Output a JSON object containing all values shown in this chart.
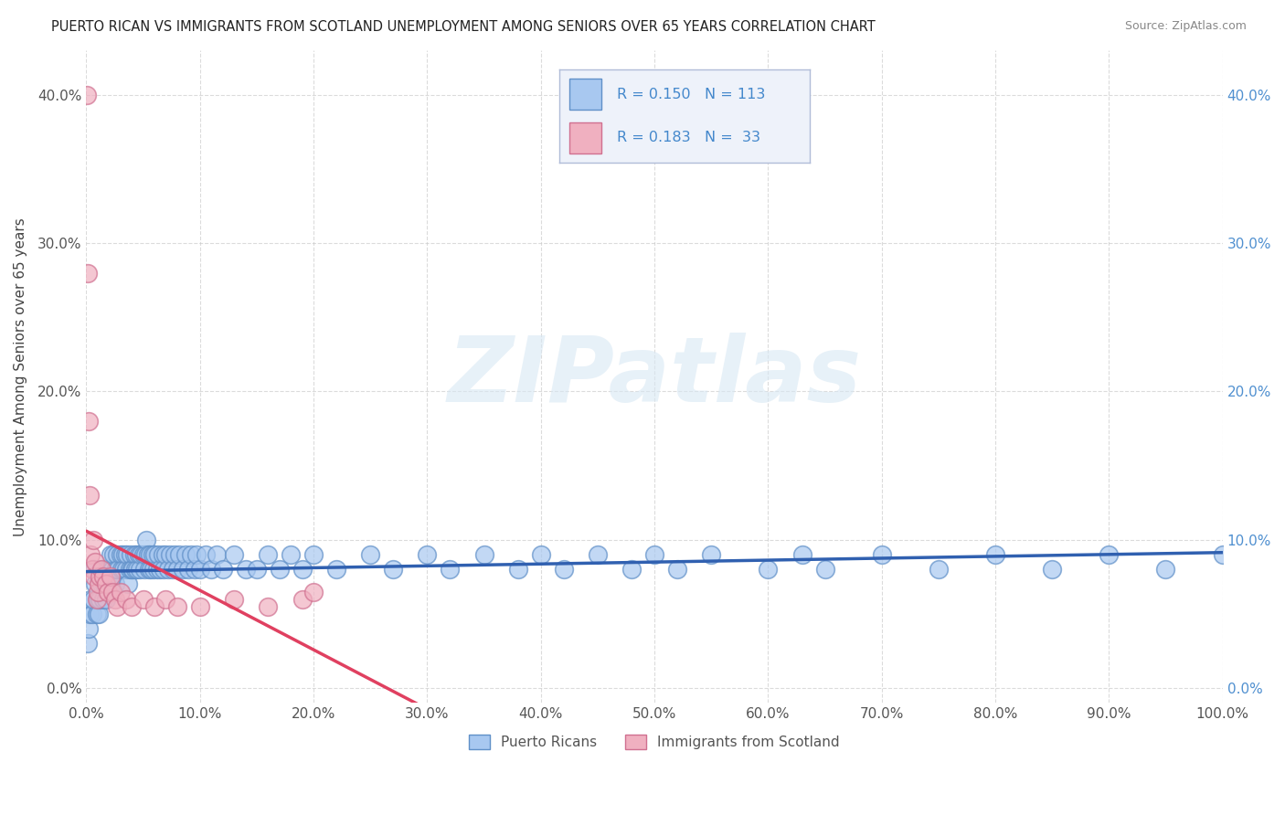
{
  "title": "PUERTO RICAN VS IMMIGRANTS FROM SCOTLAND UNEMPLOYMENT AMONG SENIORS OVER 65 YEARS CORRELATION CHART",
  "source": "Source: ZipAtlas.com",
  "ylabel": "Unemployment Among Seniors over 65 years",
  "series": [
    {
      "name": "Puerto Ricans",
      "color": "#a8c8f0",
      "edge_color": "#6090c8",
      "R": 0.15,
      "N": 113,
      "trend_color": "#3060b0",
      "x": [
        0.001,
        0.002,
        0.003,
        0.004,
        0.005,
        0.006,
        0.007,
        0.008,
        0.009,
        0.01,
        0.011,
        0.012,
        0.013,
        0.014,
        0.015,
        0.016,
        0.017,
        0.018,
        0.019,
        0.02,
        0.021,
        0.022,
        0.023,
        0.024,
        0.025,
        0.026,
        0.027,
        0.028,
        0.03,
        0.031,
        0.032,
        0.033,
        0.034,
        0.035,
        0.036,
        0.037,
        0.038,
        0.039,
        0.04,
        0.041,
        0.042,
        0.043,
        0.044,
        0.045,
        0.046,
        0.047,
        0.048,
        0.05,
        0.051,
        0.052,
        0.053,
        0.054,
        0.055,
        0.056,
        0.057,
        0.058,
        0.059,
        0.06,
        0.062,
        0.063,
        0.065,
        0.067,
        0.068,
        0.07,
        0.072,
        0.074,
        0.076,
        0.078,
        0.08,
        0.082,
        0.085,
        0.087,
        0.09,
        0.092,
        0.095,
        0.097,
        0.1,
        0.105,
        0.11,
        0.115,
        0.12,
        0.13,
        0.14,
        0.15,
        0.16,
        0.17,
        0.18,
        0.19,
        0.2,
        0.22,
        0.25,
        0.27,
        0.3,
        0.32,
        0.35,
        0.38,
        0.4,
        0.42,
        0.45,
        0.48,
        0.5,
        0.52,
        0.55,
        0.6,
        0.63,
        0.65,
        0.7,
        0.75,
        0.8,
        0.85,
        0.9,
        0.95,
        1.0
      ],
      "y": [
        0.03,
        0.04,
        0.05,
        0.06,
        0.05,
        0.06,
        0.08,
        0.07,
        0.05,
        0.06,
        0.05,
        0.06,
        0.07,
        0.08,
        0.06,
        0.07,
        0.06,
        0.08,
        0.07,
        0.08,
        0.09,
        0.07,
        0.08,
        0.09,
        0.07,
        0.08,
        0.09,
        0.08,
        0.09,
        0.08,
        0.09,
        0.08,
        0.09,
        0.08,
        0.09,
        0.07,
        0.08,
        0.09,
        0.08,
        0.08,
        0.09,
        0.08,
        0.09,
        0.08,
        0.09,
        0.08,
        0.09,
        0.09,
        0.08,
        0.09,
        0.1,
        0.09,
        0.08,
        0.09,
        0.08,
        0.09,
        0.08,
        0.09,
        0.08,
        0.09,
        0.08,
        0.09,
        0.08,
        0.09,
        0.08,
        0.09,
        0.08,
        0.09,
        0.08,
        0.09,
        0.08,
        0.09,
        0.08,
        0.09,
        0.08,
        0.09,
        0.08,
        0.09,
        0.08,
        0.09,
        0.08,
        0.09,
        0.08,
        0.08,
        0.09,
        0.08,
        0.09,
        0.08,
        0.09,
        0.08,
        0.09,
        0.08,
        0.09,
        0.08,
        0.09,
        0.08,
        0.09,
        0.08,
        0.09,
        0.08,
        0.09,
        0.08,
        0.09,
        0.08,
        0.09,
        0.08,
        0.09,
        0.08,
        0.09,
        0.08,
        0.09,
        0.08,
        0.09
      ]
    },
    {
      "name": "Immigrants from Scotland",
      "color": "#f0b0c0",
      "edge_color": "#d07090",
      "R": 0.183,
      "N": 33,
      "trend_color": "#e04060",
      "x": [
        0.0005,
        0.001,
        0.002,
        0.003,
        0.004,
        0.005,
        0.006,
        0.007,
        0.008,
        0.009,
        0.01,
        0.011,
        0.012,
        0.013,
        0.015,
        0.017,
        0.019,
        0.021,
        0.023,
        0.025,
        0.027,
        0.03,
        0.035,
        0.04,
        0.05,
        0.06,
        0.07,
        0.08,
        0.1,
        0.13,
        0.16,
        0.19,
        0.2
      ],
      "y": [
        0.4,
        0.28,
        0.18,
        0.13,
        0.09,
        0.08,
        0.1,
        0.075,
        0.085,
        0.06,
        0.065,
        0.07,
        0.075,
        0.08,
        0.075,
        0.07,
        0.065,
        0.075,
        0.065,
        0.06,
        0.055,
        0.065,
        0.06,
        0.055,
        0.06,
        0.055,
        0.06,
        0.055,
        0.055,
        0.06,
        0.055,
        0.06,
        0.065
      ]
    }
  ],
  "xlim": [
    0.0,
    1.0
  ],
  "ylim": [
    0.0,
    0.42
  ],
  "plot_ylim": [
    -0.01,
    0.43
  ],
  "xticks": [
    0.0,
    0.1,
    0.2,
    0.3,
    0.4,
    0.5,
    0.6,
    0.7,
    0.8,
    0.9,
    1.0
  ],
  "xticklabels": [
    "0.0%",
    "10.0%",
    "20.0%",
    "30.0%",
    "40.0%",
    "50.0%",
    "60.0%",
    "70.0%",
    "80.0%",
    "90.0%",
    "100.0%"
  ],
  "yticks": [
    0.0,
    0.1,
    0.2,
    0.3,
    0.4
  ],
  "yticklabels": [
    "0.0%",
    "10.0%",
    "20.0%",
    "30.0%",
    "40.0%"
  ],
  "right_ytick_color": "#5090d0",
  "grid_color": "#cccccc",
  "grid_linestyle": "--",
  "background_color": "#ffffff",
  "watermark_text": "ZIPatlas",
  "watermark_color": "#d8e8f4",
  "legend_box_facecolor": "#eef2fa",
  "legend_box_edgecolor": "#b0bcd8",
  "legend_text_color": "#4488cc",
  "legend_label_color": "#333333",
  "title_color": "#222222",
  "source_color": "#888888",
  "ylabel_color": "#444444",
  "tick_label_color": "#555555"
}
